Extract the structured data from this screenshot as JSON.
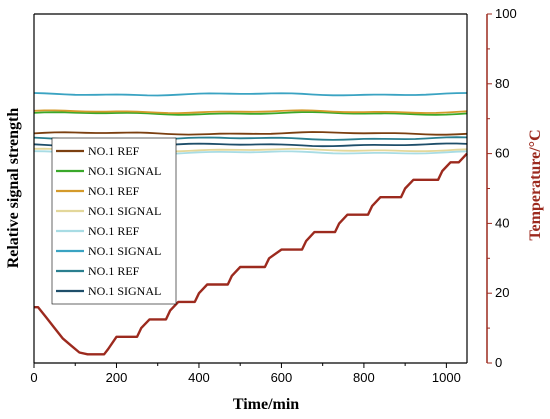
{
  "chart_data": {
    "type": "line",
    "xlabel": "Time/min",
    "ylabel_left": "Relative signal strength",
    "ylabel_right": "Temperature/°C",
    "xlim": [
      0,
      1050
    ],
    "ylim_right": [
      0,
      100
    ],
    "x_ticks": [
      "0",
      "200",
      "400",
      "600",
      "800",
      "1000"
    ],
    "y_right_ticks": [
      "0",
      "20",
      "40",
      "60",
      "80",
      "100"
    ],
    "legend_placement": "center-left",
    "series": [
      {
        "name": "NO.1 REF",
        "color": "#7b3f10",
        "level": 65.8
      },
      {
        "name": "NO.1 SIGNAL",
        "color": "#3aa82a",
        "level": 71.5
      },
      {
        "name": "NO.1 REF",
        "color": "#d49a2a",
        "level": 72.0
      },
      {
        "name": "NO.1 SIGNAL",
        "color": "#e3d79a",
        "level": 61.0
      },
      {
        "name": "NO.1 REF",
        "color": "#a8dce4",
        "level": 60.3
      },
      {
        "name": "NO.1 SIGNAL",
        "color": "#3aa3c2",
        "level": 77.0
      },
      {
        "name": "NO.1 REF",
        "color": "#2a7f8f",
        "level": 64.3
      },
      {
        "name": "NO.1 SIGNAL",
        "color": "#1e4e6a",
        "level": 62.5
      }
    ],
    "temperature": {
      "color": "#9c2a1e",
      "x": [
        0,
        10,
        30,
        50,
        70,
        90,
        110,
        130,
        150,
        170,
        180,
        200,
        220,
        250,
        260,
        280,
        300,
        320,
        330,
        350,
        380,
        390,
        400,
        420,
        440,
        470,
        480,
        500,
        520,
        560,
        570,
        600,
        620,
        650,
        660,
        680,
        700,
        730,
        740,
        760,
        780,
        810,
        820,
        840,
        860,
        890,
        900,
        920,
        940,
        980,
        990,
        1010,
        1030,
        1050
      ],
      "y": [
        16,
        16,
        13,
        10,
        7,
        5,
        3,
        2.5,
        2.5,
        2.5,
        4,
        7.5,
        7.5,
        7.5,
        10,
        12.5,
        12.5,
        12.5,
        15,
        17.5,
        17.5,
        17.5,
        20,
        22.5,
        22.5,
        22.5,
        25,
        27.5,
        27.5,
        27.5,
        30,
        32.5,
        32.5,
        32.5,
        35,
        37.5,
        37.5,
        37.5,
        40,
        42.5,
        42.5,
        42.5,
        45,
        47.5,
        47.5,
        47.5,
        50,
        52.5,
        52.5,
        52.5,
        55,
        57.5,
        57.5,
        60
      ]
    }
  }
}
